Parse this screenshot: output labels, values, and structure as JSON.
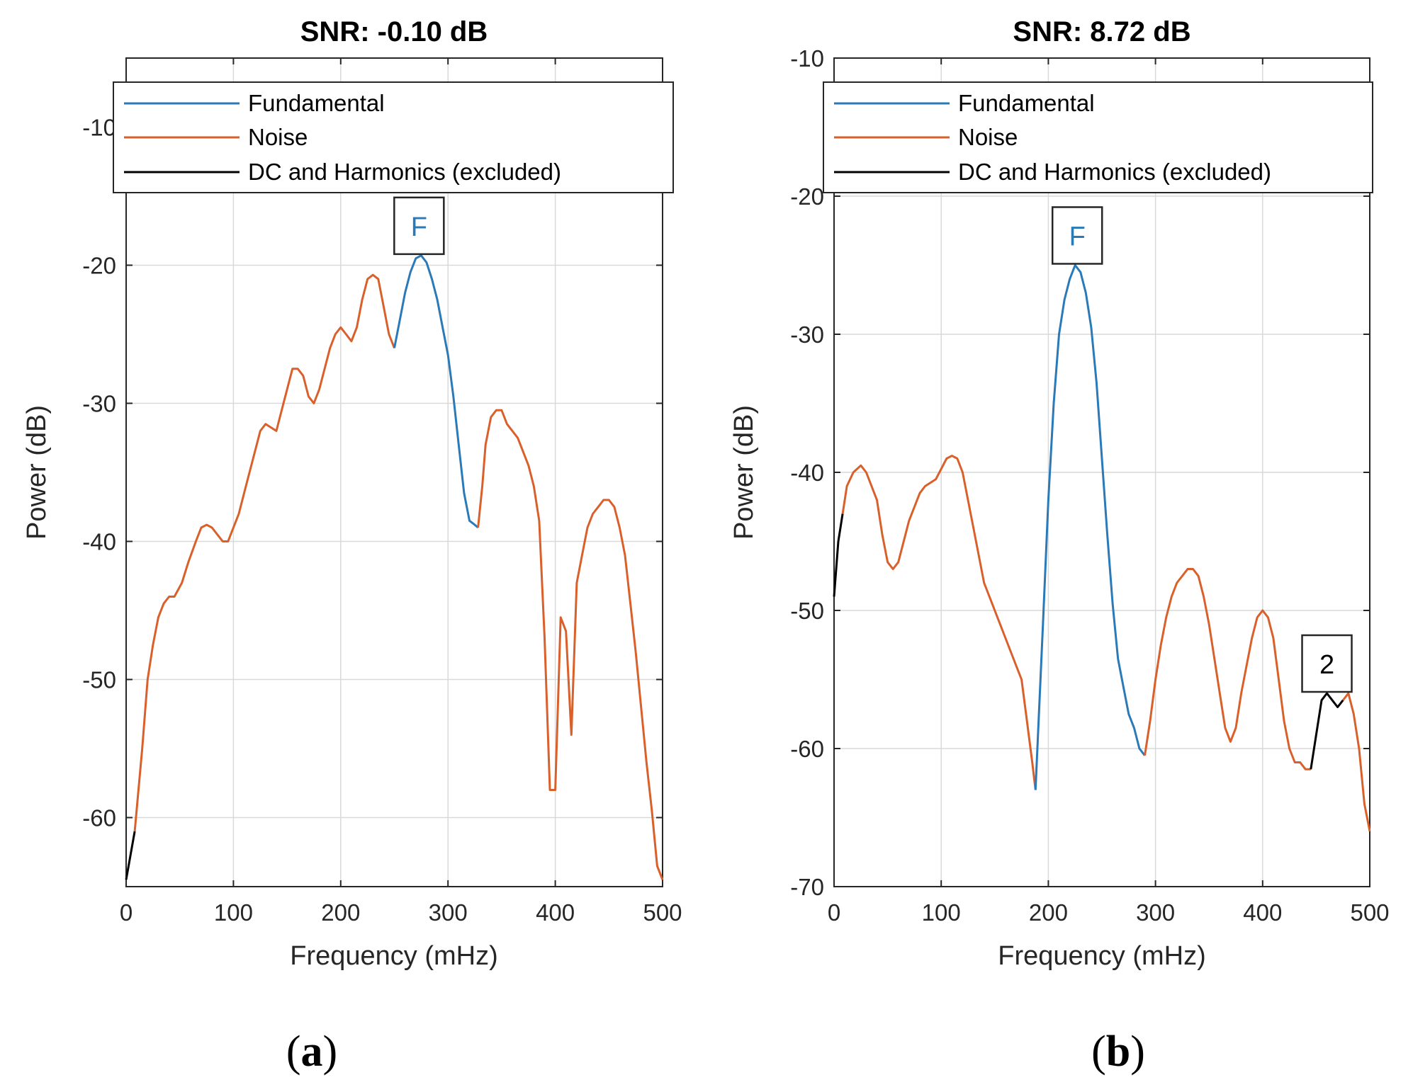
{
  "colors": {
    "fundamental": "#2a7ab8",
    "noise": "#d9602a",
    "harmonics": "#000000",
    "grid": "#d9d9d9",
    "axis": "#262626"
  },
  "chart_data": [
    {
      "id": "a",
      "type": "line",
      "panel_label": "a",
      "title": "SNR:  -0.10 dB",
      "xlabel": "Frequency (mHz)",
      "ylabel": "Power (dB)",
      "xlim": [
        0,
        500
      ],
      "ylim": [
        -65,
        -5
      ],
      "xticks": [
        0,
        100,
        200,
        300,
        400,
        500
      ],
      "yticks": [
        -60,
        -50,
        -40,
        -30,
        -20,
        -10
      ],
      "grid": true,
      "legend": {
        "placement": "top",
        "entries": [
          {
            "key": "fundamental",
            "label": "Fundamental"
          },
          {
            "key": "noise",
            "label": "Noise"
          },
          {
            "key": "harmonics",
            "label": "DC and Harmonics (excluded)"
          }
        ]
      },
      "series": [
        {
          "name": "DC and Harmonics (excluded)",
          "key": "harmonics",
          "x": [
            0,
            8
          ],
          "y": [
            -64.5,
            -61
          ]
        },
        {
          "name": "Noise",
          "key": "noise",
          "x": [
            8,
            15,
            20,
            25,
            30,
            35,
            40,
            45,
            52,
            58,
            65,
            70,
            75,
            80,
            90,
            95,
            100,
            105,
            110,
            115,
            120,
            125,
            130,
            140,
            145,
            150,
            155,
            160,
            165,
            170,
            175,
            180,
            185,
            190,
            195,
            200,
            205,
            210,
            215,
            220,
            225,
            230,
            235,
            240,
            245,
            250
          ],
          "y": [
            -61,
            -55,
            -50,
            -47.5,
            -45.5,
            -44.5,
            -44,
            -44,
            -43,
            -41.5,
            -40,
            -39,
            -38.8,
            -39,
            -40,
            -40,
            -39,
            -38,
            -36.5,
            -35,
            -33.5,
            -32,
            -31.5,
            -32,
            -30.5,
            -29,
            -27.5,
            -27.5,
            -28,
            -29.5,
            -30,
            -29,
            -27.5,
            -26,
            -25,
            -24.5,
            -25,
            -25.5,
            -24.5,
            -22.5,
            -21,
            -20.7,
            -21,
            -23,
            -25,
            -26
          ]
        },
        {
          "name": "Fundamental",
          "key": "fundamental",
          "x": [
            250,
            255,
            260,
            265,
            270,
            275,
            280,
            285,
            290,
            295,
            300,
            305,
            310,
            315,
            320,
            325,
            328
          ],
          "y": [
            -26,
            -24,
            -22,
            -20.5,
            -19.5,
            -19.3,
            -19.8,
            -21,
            -22.5,
            -24.5,
            -26.5,
            -29.5,
            -33,
            -36.5,
            -38.5,
            -38.8,
            -39
          ]
        },
        {
          "name": "Noise",
          "key": "noise",
          "x": [
            328,
            332,
            335,
            340,
            345,
            350,
            355,
            360,
            365,
            370,
            375,
            380,
            385,
            390,
            395,
            400,
            405,
            410,
            415,
            420,
            425,
            430,
            435,
            440,
            445,
            450,
            455,
            460,
            465,
            470,
            475,
            480,
            485,
            490,
            495,
            500
          ],
          "y": [
            -39,
            -36,
            -33,
            -31,
            -30.5,
            -30.5,
            -31.5,
            -32,
            -32.5,
            -33.5,
            -34.5,
            -36,
            -38.5,
            -47,
            -58,
            -58,
            -45.5,
            -46.5,
            -54,
            -43,
            -41,
            -39,
            -38,
            -37.5,
            -37,
            -37,
            -37.5,
            -39,
            -41,
            -44.5,
            -48,
            -52,
            -56,
            -59.5,
            -63.5,
            -64.5
          ]
        }
      ],
      "annotations": [
        {
          "label": "F",
          "key": "fundamental",
          "x": 273,
          "y": -19.3
        }
      ]
    },
    {
      "id": "b",
      "type": "line",
      "panel_label": "b",
      "title": "SNR:   8.72 dB",
      "xlabel": "Frequency (mHz)",
      "ylabel": "Power (dB)",
      "xlim": [
        0,
        500
      ],
      "ylim": [
        -70,
        -10
      ],
      "xticks": [
        0,
        100,
        200,
        300,
        400,
        500
      ],
      "yticks": [
        -70,
        -60,
        -50,
        -40,
        -30,
        -20,
        -10
      ],
      "grid": true,
      "legend": {
        "placement": "top",
        "entries": [
          {
            "key": "fundamental",
            "label": "Fundamental"
          },
          {
            "key": "noise",
            "label": "Noise"
          },
          {
            "key": "harmonics",
            "label": "DC and Harmonics (excluded)"
          }
        ]
      },
      "series": [
        {
          "name": "DC and Harmonics (excluded)",
          "key": "harmonics",
          "x": [
            0,
            4,
            8
          ],
          "y": [
            -49,
            -45,
            -43
          ]
        },
        {
          "name": "Noise",
          "key": "noise",
          "x": [
            8,
            12,
            18,
            25,
            30,
            40,
            45,
            50,
            55,
            60,
            70,
            80,
            85,
            95,
            105,
            110,
            115,
            120,
            125,
            130,
            140,
            150,
            160,
            170,
            175,
            180,
            185,
            188
          ],
          "y": [
            -43,
            -41,
            -40,
            -39.5,
            -40,
            -42,
            -44.5,
            -46.5,
            -47,
            -46.5,
            -43.5,
            -41.5,
            -41,
            -40.5,
            -39,
            -38.8,
            -39,
            -40,
            -42,
            -44,
            -48,
            -50,
            -52,
            -54,
            -55,
            -58,
            -61,
            -63
          ]
        },
        {
          "name": "Fundamental",
          "key": "fundamental",
          "x": [
            188,
            195,
            200,
            205,
            210,
            215,
            220,
            225,
            230,
            235,
            240,
            245,
            250,
            255,
            260,
            265,
            270,
            275,
            280,
            285,
            290
          ],
          "y": [
            -63,
            -51,
            -42,
            -35,
            -30,
            -27.5,
            -26,
            -25,
            -25.5,
            -27,
            -29.5,
            -33.5,
            -39,
            -44.5,
            -49.5,
            -53.5,
            -55.5,
            -57.5,
            -58.5,
            -60,
            -60.5
          ]
        },
        {
          "name": "Noise",
          "key": "noise",
          "x": [
            290,
            295,
            300,
            305,
            310,
            315,
            320,
            325,
            330,
            335,
            340,
            345,
            350,
            355,
            360,
            365,
            370,
            375,
            380,
            385,
            390,
            395,
            400,
            405,
            410,
            415,
            420,
            425,
            430,
            435,
            440,
            445
          ],
          "y": [
            -60.5,
            -58,
            -55,
            -52.5,
            -50.5,
            -49,
            -48,
            -47.5,
            -47,
            -47,
            -47.5,
            -49,
            -51,
            -53.5,
            -56,
            -58.5,
            -59.5,
            -58.5,
            -56,
            -54,
            -52,
            -50.5,
            -50,
            -50.5,
            -52,
            -55,
            -58,
            -60,
            -61,
            -61,
            -61.5,
            -61.5
          ]
        },
        {
          "name": "DC and Harmonics (excluded)",
          "key": "harmonics",
          "x": [
            445,
            450,
            455,
            460,
            465,
            470,
            475
          ],
          "y": [
            -61.5,
            -59,
            -56.5,
            -56,
            -56.5,
            -57,
            -56.5
          ]
        },
        {
          "name": "Noise",
          "key": "noise",
          "x": [
            475,
            480,
            485,
            490,
            495,
            500
          ],
          "y": [
            -56.5,
            -56,
            -57.5,
            -60,
            -64,
            -66
          ]
        }
      ],
      "annotations": [
        {
          "label": "F",
          "key": "fundamental",
          "x": 227,
          "y": -25
        },
        {
          "label": "2",
          "key": "harmonics",
          "x": 460,
          "y": -56
        }
      ]
    }
  ]
}
